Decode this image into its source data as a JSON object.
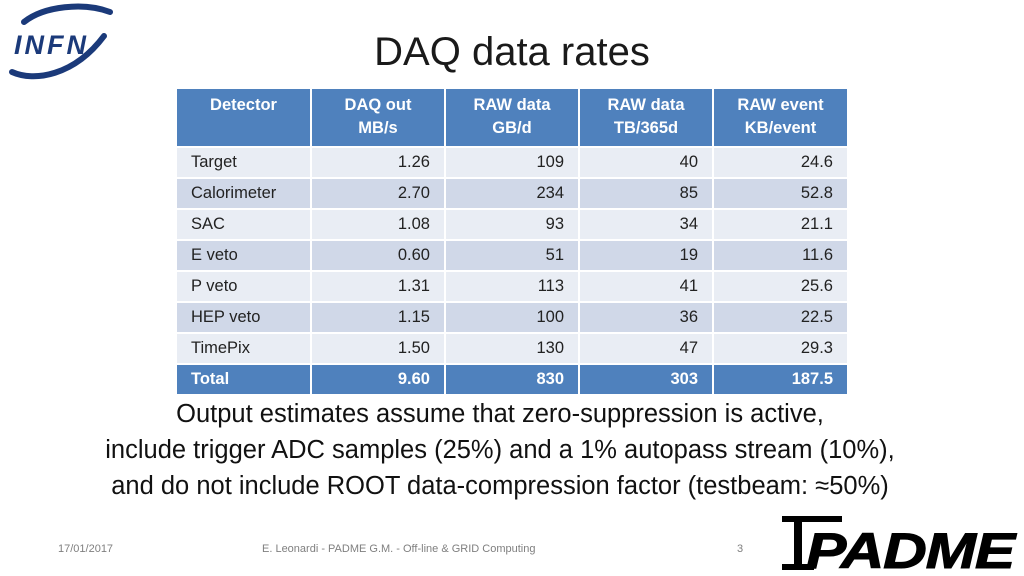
{
  "logos": {
    "infn": "INFN",
    "padme": "PADME"
  },
  "title": "DAQ data rates",
  "table": {
    "headers": [
      [
        "Detector"
      ],
      [
        "DAQ out",
        "MB/s"
      ],
      [
        "RAW data",
        "GB/d"
      ],
      [
        "RAW data",
        "TB/365d"
      ],
      [
        "RAW event",
        "KB/event"
      ]
    ],
    "rows": [
      [
        "Target",
        "1.26",
        "109",
        "40",
        "24.6"
      ],
      [
        "Calorimeter",
        "2.70",
        "234",
        "85",
        "52.8"
      ],
      [
        "SAC",
        "1.08",
        "93",
        "34",
        "21.1"
      ],
      [
        "E veto",
        "0.60",
        "51",
        "19",
        "11.6"
      ],
      [
        "P veto",
        "1.31",
        "113",
        "41",
        "25.6"
      ],
      [
        "HEP veto",
        "1.15",
        "100",
        "36",
        "22.5"
      ],
      [
        "TimePix",
        "1.50",
        "130",
        "47",
        "29.3"
      ]
    ],
    "total": [
      "Total",
      "9.60",
      "830",
      "303",
      "187.5"
    ]
  },
  "note": [
    "Output estimates assume that zero-suppression is active,",
    "include trigger ADC samples (25%) and a 1% autopass stream (10%),",
    "and do not include ROOT data-compression factor (testbeam: ≈50%)"
  ],
  "footer": {
    "date": "17/01/2017",
    "author": "E. Leonardi - PADME G.M. - Off-line & GRID Computing",
    "page": "3"
  },
  "colors": {
    "header_blue": "#4f81bd",
    "row_light": "#e9edf4",
    "row_dark": "#d0d8e8",
    "infn_blue": "#1b3a7a"
  }
}
